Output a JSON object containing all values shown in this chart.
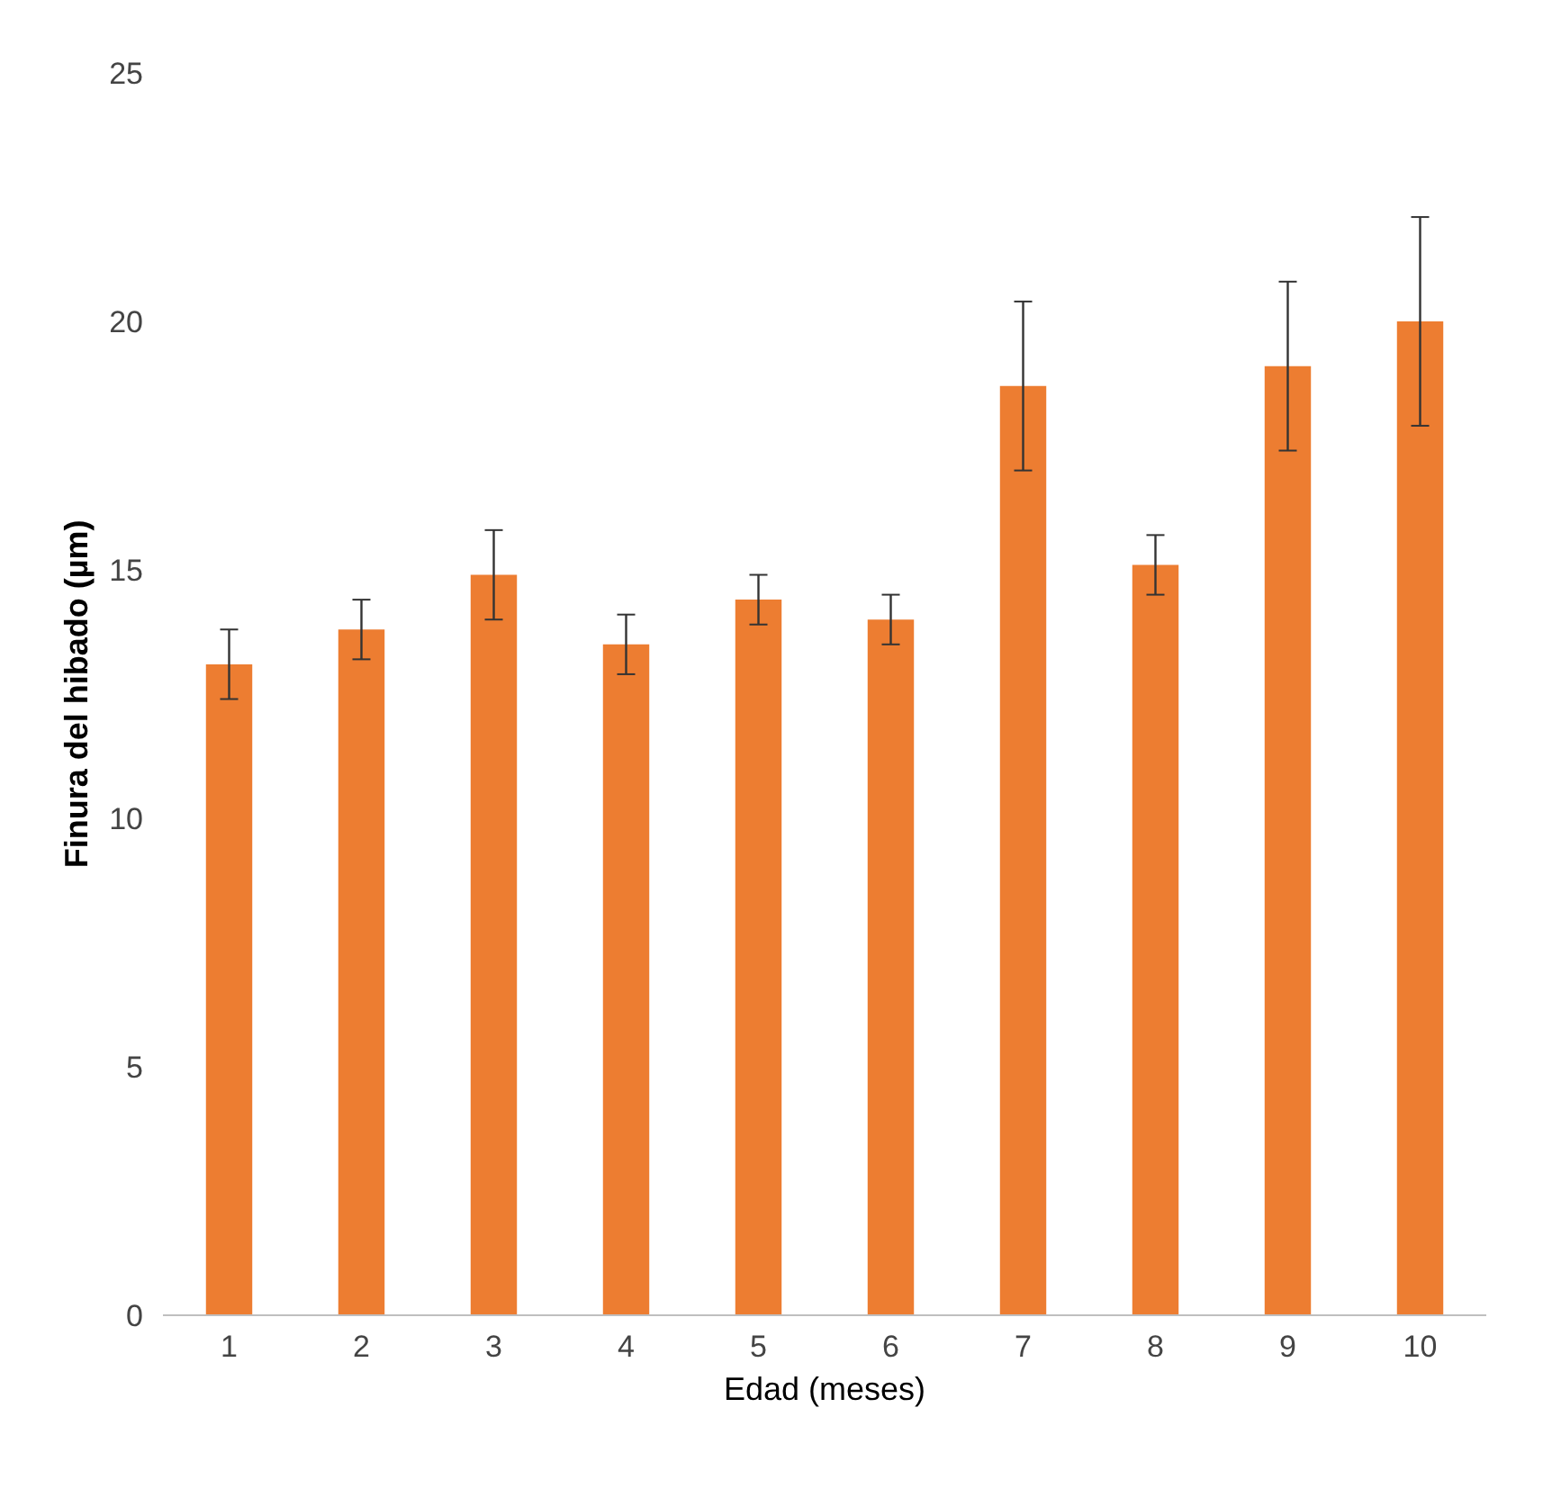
{
  "chart_data": {
    "type": "bar",
    "xlabel": "Edad (meses)",
    "ylabel": "Finura del hibado (µm)",
    "categories": [
      "1",
      "2",
      "3",
      "4",
      "5",
      "6",
      "7",
      "8",
      "9",
      "10"
    ],
    "values": [
      13.1,
      13.8,
      14.9,
      13.5,
      14.4,
      14.0,
      18.7,
      15.1,
      19.1,
      20.0
    ],
    "errors": [
      0.7,
      0.6,
      0.9,
      0.6,
      0.5,
      0.5,
      1.7,
      0.6,
      1.7,
      2.1
    ],
    "color": "#ed7d31",
    "ylim": [
      0,
      25
    ],
    "yticks": [
      0,
      5,
      10,
      15,
      20,
      25
    ],
    "grid": false
  }
}
